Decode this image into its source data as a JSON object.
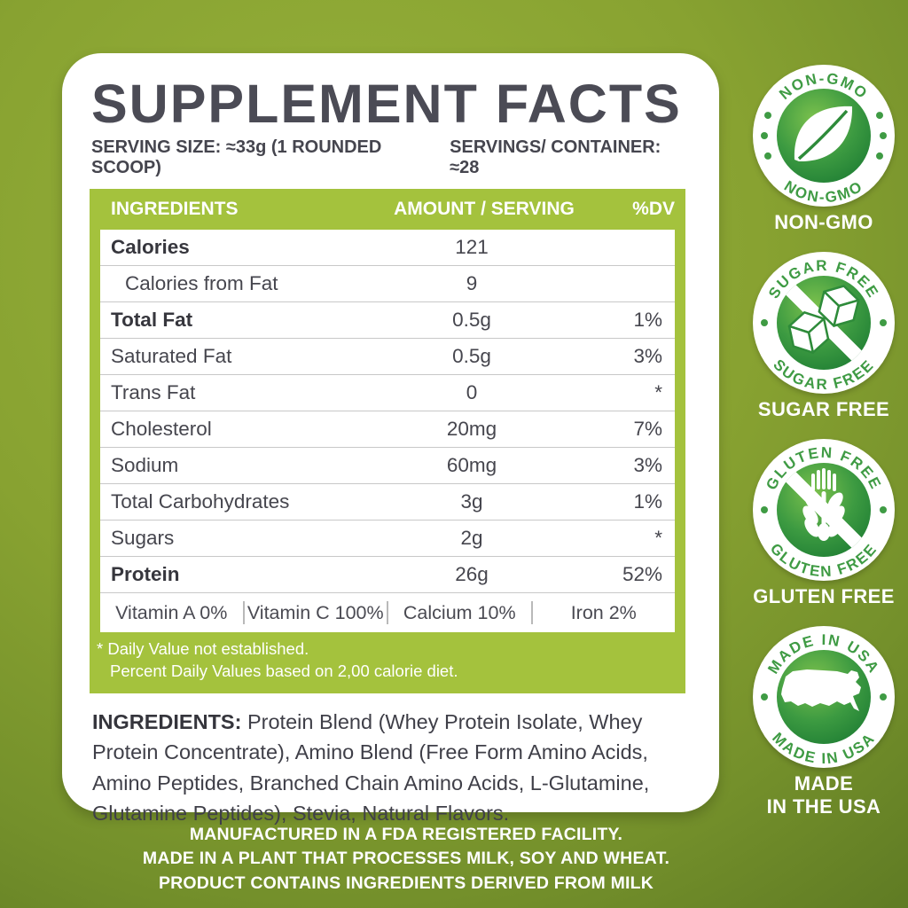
{
  "panel": {
    "title": "SUPPLEMENT FACTS",
    "serving_size": "SERVING SIZE: ≈33g (1 ROUNDED SCOOP)",
    "servings_per_container": "SERVINGS/ CONTAINER: ≈28",
    "table": {
      "columns": [
        "INGREDIENTS",
        "AMOUNT / SERVING",
        "%DV"
      ],
      "rows": [
        {
          "name": "Calories",
          "amount": "121",
          "dv": "",
          "bold": true,
          "indent": false
        },
        {
          "name": "Calories from Fat",
          "amount": "9",
          "dv": "",
          "bold": false,
          "indent": true
        },
        {
          "name": "Total Fat",
          "amount": "0.5g",
          "dv": "1%",
          "bold": true,
          "indent": false
        },
        {
          "name": "Saturated Fat",
          "amount": "0.5g",
          "dv": "3%",
          "bold": false,
          "indent": false
        },
        {
          "name": "Trans Fat",
          "amount": "0",
          "dv": "*",
          "bold": false,
          "indent": false
        },
        {
          "name": "Cholesterol",
          "amount": "20mg",
          "dv": "7%",
          "bold": false,
          "indent": false
        },
        {
          "name": "Sodium",
          "amount": "60mg",
          "dv": "3%",
          "bold": false,
          "indent": false
        },
        {
          "name": "Total Carbohydrates",
          "amount": "3g",
          "dv": "1%",
          "bold": false,
          "indent": false
        },
        {
          "name": "Sugars",
          "amount": "2g",
          "dv": "*",
          "bold": false,
          "indent": false
        },
        {
          "name": "Protein",
          "amount": "26g",
          "dv": "52%",
          "bold": true,
          "indent": false
        }
      ],
      "vitamins": [
        "Vitamin A 0%",
        "Vitamin C 100%",
        "Calcium 10%",
        "Iron 2%"
      ],
      "footnotes": [
        "* Daily Value not established.",
        "Percent Daily Values based on 2,00 calorie diet."
      ]
    },
    "ingredients": {
      "label": "INGREDIENTS:",
      "text": " Protein Blend (Whey Protein Isolate, Whey Protein Concentrate), Amino Blend (Free Form Amino Acids, Amino Peptides, Branched Chain Amino Acids, L-Glutamine, Glutamine Peptides), Stevia, Natural Flavors."
    }
  },
  "badges": [
    {
      "icon": "leaf-icon",
      "ring_top": "NON-GMO",
      "ring_bottom": "NON-GMO",
      "label_lines": [
        "NON-GMO"
      ]
    },
    {
      "icon": "sugar-cubes-icon",
      "ring_top": "SUGAR FREE",
      "ring_bottom": "SUGAR FREE",
      "label_lines": [
        "SUGAR FREE"
      ]
    },
    {
      "icon": "wheat-icon",
      "ring_top": "GLUTEN FREE",
      "ring_bottom": "GLUTEN FREE",
      "label_lines": [
        "GLUTEN FREE"
      ]
    },
    {
      "icon": "usa-map-icon",
      "ring_top": "MADE IN USA",
      "ring_bottom": "MADE IN USA",
      "label_lines": [
        "MADE",
        "IN THE USA"
      ]
    }
  ],
  "footer": {
    "lines": [
      "MANUFACTURED IN A FDA REGISTERED FACILITY.",
      "MADE IN A PLANT THAT PROCESSES MILK, SOY AND WHEAT.",
      "PRODUCT CONTAINS INGREDIENTS DERIVED FROM MILK"
    ]
  },
  "colors": {
    "accent_green": "#a4c23d",
    "badge_ring_green": "#3f9b44",
    "badge_inner_dark": "#1d7c33",
    "badge_inner_light": "#7cc14d",
    "title_gray": "#4b4b55",
    "background_light": "#97b23b",
    "background_dark": "#4e691d"
  }
}
